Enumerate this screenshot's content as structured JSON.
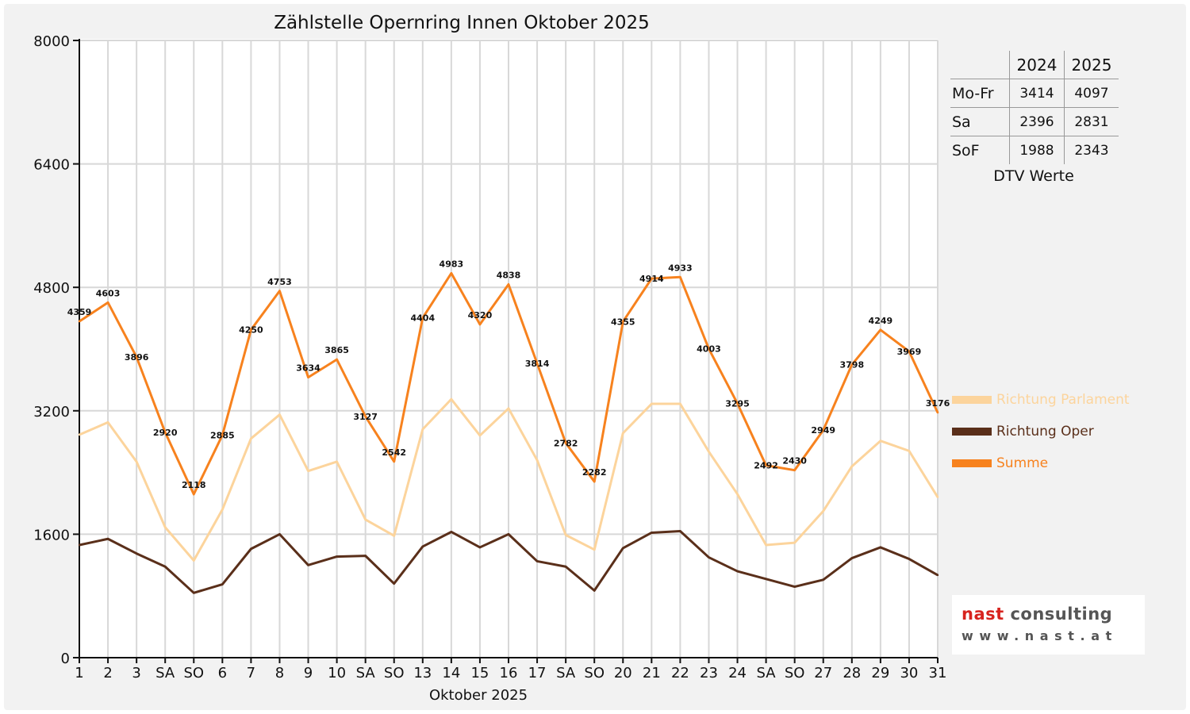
{
  "chart_data": {
    "type": "line",
    "title": "Zählstelle Opernring Innen Oktober 2025",
    "xlabel": "Oktober 2025",
    "ylabel": "",
    "ylim": [
      0,
      8000
    ],
    "yticks": [
      0,
      1600,
      3200,
      4800,
      6400,
      8000
    ],
    "grid": true,
    "categories": [
      "1",
      "2",
      "3",
      "SA",
      "SO",
      "6",
      "7",
      "8",
      "9",
      "10",
      "SA",
      "SO",
      "13",
      "14",
      "15",
      "16",
      "17",
      "SA",
      "SO",
      "20",
      "21",
      "22",
      "23",
      "24",
      "SA",
      "SO",
      "27",
      "28",
      "29",
      "30",
      "31"
    ],
    "series": [
      {
        "name": "Richtung Parlament",
        "color": "#fcd49c",
        "values": [
          2890,
          3050,
          2540,
          1690,
          1260,
          1920,
          2840,
          3150,
          2420,
          2540,
          1790,
          1580,
          2960,
          3350,
          2880,
          3230,
          2560,
          1590,
          1400,
          2910,
          3290,
          3290,
          2670,
          2120,
          1460,
          1490,
          1900,
          2480,
          2810,
          2680,
          2080
        ]
      },
      {
        "name": "Richtung Oper",
        "color": "#5a2f1a",
        "values": [
          1460,
          1540,
          1350,
          1180,
          840,
          950,
          1410,
          1600,
          1200,
          1310,
          1320,
          960,
          1440,
          1630,
          1430,
          1600,
          1250,
          1180,
          870,
          1420,
          1620,
          1640,
          1300,
          1120,
          1020,
          920,
          1010,
          1290,
          1430,
          1280,
          1070
        ]
      },
      {
        "name": "Summe",
        "color": "#f7821e",
        "values": [
          4359,
          4603,
          3896,
          2920,
          2118,
          2885,
          4250,
          4753,
          3634,
          3865,
          3127,
          2542,
          4404,
          4983,
          4320,
          4838,
          3814,
          2782,
          2282,
          4355,
          4914,
          4933,
          4003,
          3295,
          2492,
          2430,
          2949,
          3798,
          4249,
          3969,
          3176
        ]
      }
    ],
    "legend_position": "right",
    "weekend_label_color": "#e00000"
  },
  "dtv_table": {
    "columns": [
      "2024",
      "2025"
    ],
    "rows": [
      {
        "label": "Mo-Fr",
        "v2024": "3414",
        "v2025": "4097"
      },
      {
        "label": "Sa",
        "v2024": "2396",
        "v2025": "2831"
      },
      {
        "label": "SoF",
        "v2024": "1988",
        "v2025": "2343"
      }
    ],
    "caption": "DTV Werte"
  },
  "logo": {
    "word1": "nast",
    "word2": "consulting",
    "url": "www.nast.at"
  }
}
